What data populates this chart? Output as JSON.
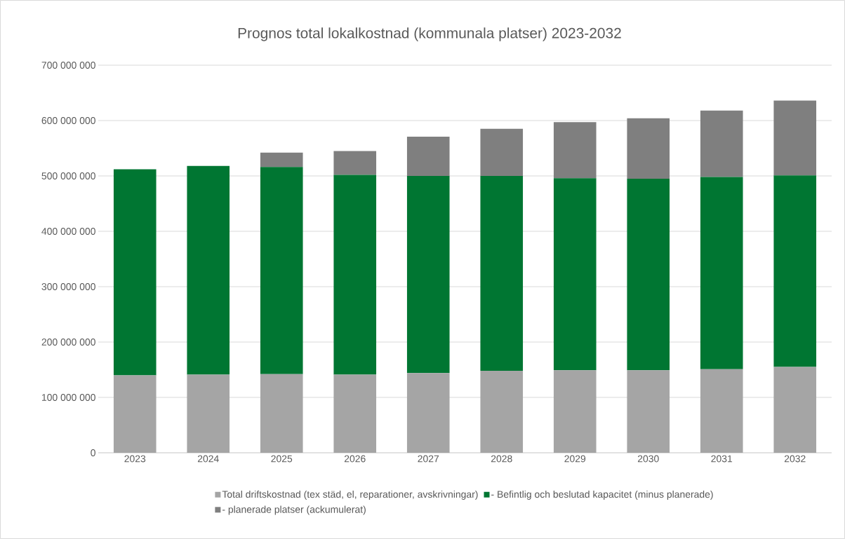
{
  "chart_data": {
    "type": "bar",
    "stacked": true,
    "title": "Prognos total lokalkostnad (kommunala platser) 2023-2032",
    "categories": [
      "2023",
      "2024",
      "2025",
      "2026",
      "2027",
      "2028",
      "2029",
      "2030",
      "2031",
      "2032"
    ],
    "series": [
      {
        "name": "Total driftskostnad (tex städ, el, reparationer, avskrivningar)",
        "color": "#a5a5a5",
        "values": [
          140000000,
          141000000,
          142000000,
          141000000,
          144000000,
          148000000,
          149000000,
          149000000,
          151000000,
          155000000
        ]
      },
      {
        "name": "- Befintlig och beslutad kapacitet (minus planerade)",
        "color": "#007632",
        "values": [
          372000000,
          377000000,
          374000000,
          361000000,
          356000000,
          352000000,
          347000000,
          346000000,
          347000000,
          346000000
        ]
      },
      {
        "name": "- planerade platser (ackumulerat)",
        "color": "#7f7f7f",
        "values": [
          null,
          null,
          26000000,
          43000000,
          71000000,
          85000000,
          101000000,
          109000000,
          120000000,
          135000000
        ]
      }
    ],
    "ylim": [
      0,
      700000000
    ],
    "yticks": [
      0,
      {
        "value": 100000000,
        "label": "100 000 000"
      },
      {
        "value": 200000000,
        "label": "200 000 000"
      },
      {
        "value": 300000000,
        "label": "300 000 000"
      },
      {
        "value": 400000000,
        "label": "400 000 000"
      },
      {
        "value": 500000000,
        "label": "500 000 000"
      },
      {
        "value": 600000000,
        "label": "600 000 000"
      },
      {
        "value": 700000000,
        "label": "700 000 000"
      }
    ],
    "grid": "y",
    "legend": "bottom"
  }
}
